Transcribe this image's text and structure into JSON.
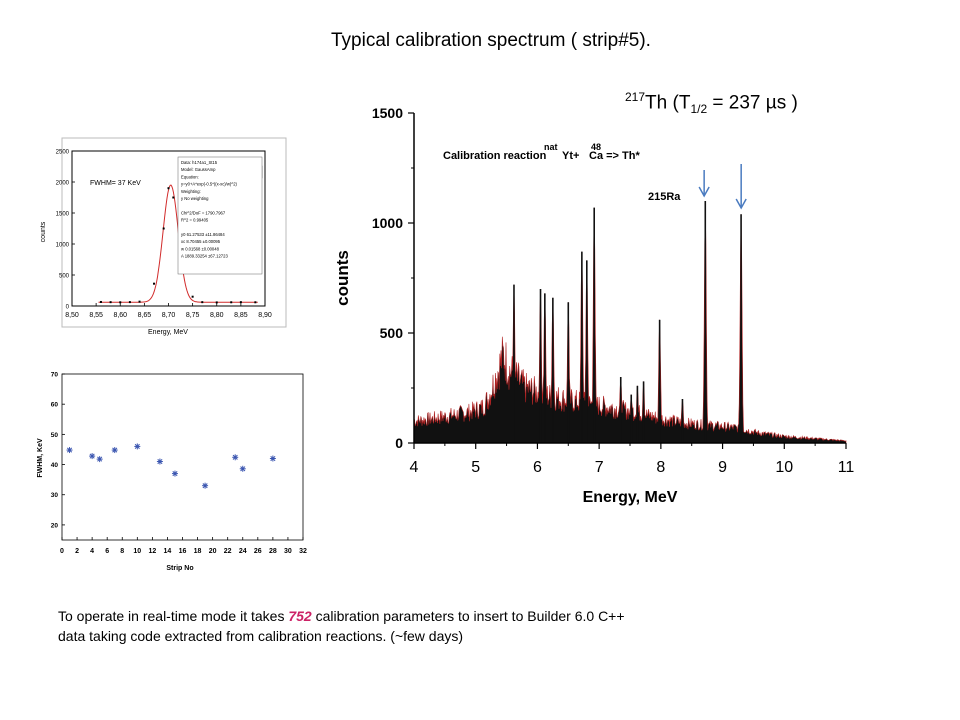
{
  "slide": {
    "title": "Typical calibration spectrum ( strip#5).",
    "isotope_mass": "217",
    "isotope_element": "Th",
    "halflife_open": "  (T",
    "halflife_sub": "1/2",
    "halflife_value": " = 237 µs )",
    "footnote_part1": "To operate in real-time mode it takes ",
    "footnote_number": "752",
    "footnote_part2": " calibration parameters to insert to Builder 6.0 C++",
    "footnote_line2": "data taking code extracted from calibration reactions. (~few days)"
  },
  "chart_data": [
    {
      "type": "area",
      "xlabel": "Energy, MeV",
      "ylabel": "counts",
      "xlim": [
        4,
        11
      ],
      "ylim": [
        0,
        1500
      ],
      "xticks": [
        "4",
        "5",
        "6",
        "7",
        "8",
        "9",
        "10",
        "11"
      ],
      "yticks": [
        "0",
        "500",
        "1000",
        "1500"
      ],
      "annotation_reaction": "Calibration reaction",
      "annotation_nat": "nat",
      "annotation_yt": "Yt+",
      "annotation_48": "48",
      "annotation_ca": "Ca => Th*",
      "annotation_peak": "215Ra",
      "arrows_at_energy": [
        8.75,
        9.35
      ],
      "background": [
        [
          4.0,
          100
        ],
        [
          4.3,
          110
        ],
        [
          4.6,
          125
        ],
        [
          4.9,
          140
        ],
        [
          5.1,
          160
        ],
        [
          5.2,
          200
        ],
        [
          5.35,
          320
        ],
        [
          5.45,
          400
        ],
        [
          5.55,
          330
        ],
        [
          5.8,
          250
        ],
        [
          6.1,
          220
        ],
        [
          6.4,
          200
        ],
        [
          6.8,
          180
        ],
        [
          7.2,
          160
        ],
        [
          7.6,
          140
        ],
        [
          8.0,
          110
        ],
        [
          8.4,
          90
        ],
        [
          8.8,
          80
        ],
        [
          9.2,
          70
        ],
        [
          9.6,
          45
        ],
        [
          10.0,
          30
        ],
        [
          10.5,
          20
        ],
        [
          11.0,
          10
        ]
      ],
      "peaks": [
        [
          5.62,
          720
        ],
        [
          6.05,
          700
        ],
        [
          6.12,
          680
        ],
        [
          6.25,
          660
        ],
        [
          6.5,
          640
        ],
        [
          6.72,
          870
        ],
        [
          6.8,
          830
        ],
        [
          6.92,
          1070
        ],
        [
          7.35,
          300
        ],
        [
          7.52,
          220
        ],
        [
          7.62,
          260
        ],
        [
          7.72,
          280
        ],
        [
          7.98,
          560
        ],
        [
          8.35,
          200
        ],
        [
          8.72,
          1100
        ],
        [
          9.3,
          1040
        ]
      ]
    },
    {
      "type": "scatter",
      "legend_entry": "St15",
      "xlabel": "Energy, MeV",
      "ylabel": "counts",
      "xlim": [
        8.5,
        8.9
      ],
      "ylim": [
        0,
        2500
      ],
      "xticks": [
        "8,50",
        "8,55",
        "8,60",
        "8,65",
        "8,70",
        "8,75",
        "8,80",
        "8,85",
        "8,90"
      ],
      "yticks": [
        "0",
        "500",
        "1000",
        "1500",
        "2000",
        "2500"
      ],
      "annotation": "FWHM= 37 KeV",
      "fit_box_lines": [
        "Data: h174a1_St15",
        "Model: GaussAmp",
        "Equation:",
        "y=y0+A*exp(-0.5*((x-xc)/w)^2)",
        "Weighting:",
        "y       No weighting",
        "",
        "Chi^2/DoF      = 1790.7967",
        "R^2     =  0.99405",
        "",
        "y0     61.27533    ±11.86484",
        "xc     8.70455     ±0.00095",
        "w      0.01568     ±0.00048",
        "A      1889.33254  ±67.12723"
      ],
      "fit": {
        "y0": 61.27533,
        "xc": 8.70455,
        "w": 0.01568,
        "A": 1889.33254
      },
      "points": [
        [
          8.56,
          65
        ],
        [
          8.58,
          62
        ],
        [
          8.6,
          60
        ],
        [
          8.62,
          63
        ],
        [
          8.64,
          70
        ],
        [
          8.67,
          360
        ],
        [
          8.69,
          1250
        ],
        [
          8.7,
          1900
        ],
        [
          8.71,
          1750
        ],
        [
          8.73,
          840
        ],
        [
          8.75,
          150
        ],
        [
          8.77,
          62
        ],
        [
          8.8,
          58
        ],
        [
          8.83,
          60
        ],
        [
          8.85,
          62
        ],
        [
          8.88,
          60
        ]
      ]
    },
    {
      "type": "scatter",
      "xlabel": "Strip No",
      "ylabel": "FWHM, KeV",
      "xlim": [
        0,
        32
      ],
      "ylim": [
        15,
        70
      ],
      "xticks": [
        "0",
        "2",
        "4",
        "6",
        "8",
        "10",
        "12",
        "14",
        "16",
        "18",
        "20",
        "22",
        "24",
        "26",
        "28",
        "30",
        "32"
      ],
      "yticks": [
        "20",
        "30",
        "40",
        "50",
        "60",
        "70"
      ],
      "points": [
        [
          1,
          44.8
        ],
        [
          4,
          42.8
        ],
        [
          5,
          41.8
        ],
        [
          7,
          44.8
        ],
        [
          10,
          46
        ],
        [
          13,
          41
        ],
        [
          15,
          37
        ],
        [
          19,
          33
        ],
        [
          23,
          42.4
        ],
        [
          24,
          38.6
        ],
        [
          28,
          42
        ]
      ]
    }
  ]
}
